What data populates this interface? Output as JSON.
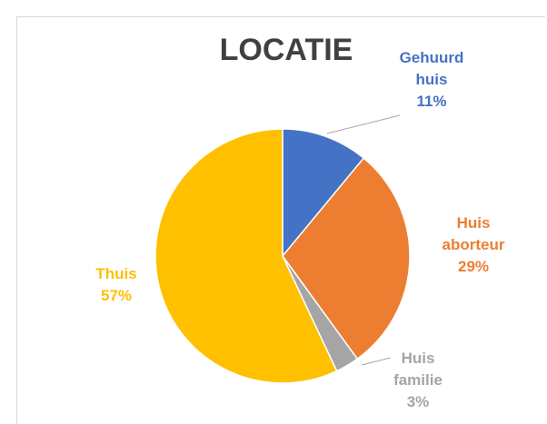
{
  "chart_data": {
    "type": "pie",
    "title": "LOCATIE",
    "categories": [
      "Gehuurd huis",
      "Huis aborteur",
      "Huis familie",
      "Thuis"
    ],
    "values": [
      11,
      29,
      3,
      57
    ],
    "value_labels": [
      "11%",
      "29%",
      "3%",
      "57%"
    ],
    "colors": [
      "#4472c4",
      "#ed7d31",
      "#a5a5a5",
      "#ffc000"
    ]
  }
}
